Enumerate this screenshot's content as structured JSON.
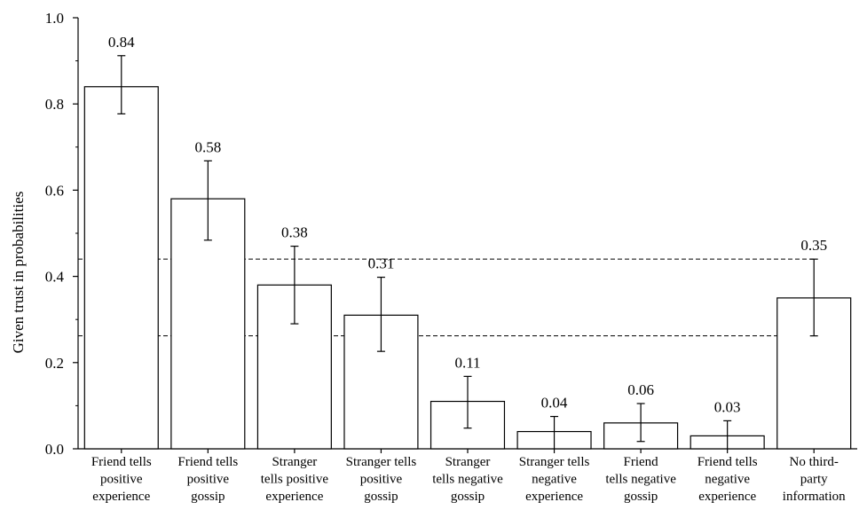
{
  "chart_data": {
    "type": "bar",
    "ylabel": "Given trust in probabilities",
    "ylim": [
      0,
      1.0
    ],
    "y_ticks": [
      "0.0",
      "0.2",
      "0.4",
      "0.6",
      "0.8",
      "1.0"
    ],
    "categories": [
      [
        "Friend tells",
        "positive",
        "experience"
      ],
      [
        "Friend tells",
        "positive",
        "gossip"
      ],
      [
        "Stranger",
        "tells positive",
        "experience"
      ],
      [
        "Stranger tells",
        "positive",
        "gossip"
      ],
      [
        "Stranger",
        "tells negative",
        "gossip"
      ],
      [
        "Stranger tells",
        "negative",
        "experience"
      ],
      [
        "Friend",
        "tells negative",
        "gossip"
      ],
      [
        "Friend tells",
        "negative",
        "experience"
      ],
      [
        "No third-",
        "party",
        "information"
      ]
    ],
    "values": [
      0.84,
      0.58,
      0.38,
      0.31,
      0.11,
      0.04,
      0.06,
      0.03,
      0.35
    ],
    "value_labels": [
      "0.84",
      "0.58",
      "0.38",
      "0.31",
      "0.11",
      "0.04",
      "0.06",
      "0.03",
      "0.35"
    ],
    "error_bars": [
      [
        0.777,
        0.912
      ],
      [
        0.484,
        0.668
      ],
      [
        0.29,
        0.47
      ],
      [
        0.226,
        0.398
      ],
      [
        0.048,
        0.168
      ],
      [
        0.0,
        0.075
      ],
      [
        0.017,
        0.105
      ],
      [
        0.0,
        0.065
      ],
      [
        0.262,
        0.44
      ]
    ],
    "reference_lines": [
      0.262,
      0.44
    ],
    "bar_color": "#ffffff",
    "edge_color": "#000000",
    "grid": false
  }
}
